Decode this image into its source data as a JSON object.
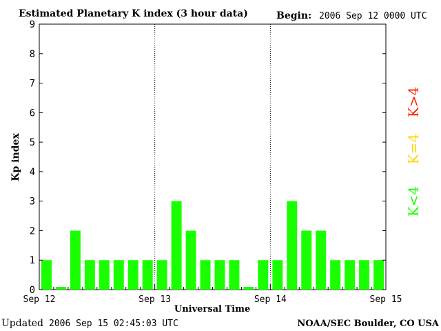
{
  "header": {
    "title": "Estimated Planetary K index (3 hour data)",
    "begin_label": "Begin:",
    "begin_value": "2006 Sep 12 0000 UTC"
  },
  "footer": {
    "updated_label": "Updated",
    "updated_value": "2006 Sep 15 02:45:03 UTC",
    "source": "NOAA/SEC Boulder, CO USA"
  },
  "legend": {
    "high": "K>4",
    "mid": "K=4",
    "low": "K<4"
  },
  "colors": {
    "low": "#1aff00",
    "mid": "#ffd400",
    "high": "#ff2200"
  },
  "chart_data": {
    "type": "bar",
    "ylabel": "Kp index",
    "xlabel": "Universal Time",
    "ylim": [
      0,
      9
    ],
    "yticks": [
      "0",
      "1",
      "2",
      "3",
      "4",
      "5",
      "6",
      "7",
      "8",
      "9"
    ],
    "day_labels": [
      "Sep 12",
      "Sep 13",
      "Sep 14",
      "Sep 15"
    ],
    "values": [
      1,
      0,
      2,
      1,
      1,
      1,
      1,
      1,
      1,
      3,
      2,
      1,
      1,
      1,
      0,
      1,
      1,
      3,
      2,
      2,
      1,
      1,
      1,
      1
    ],
    "grid": false
  }
}
